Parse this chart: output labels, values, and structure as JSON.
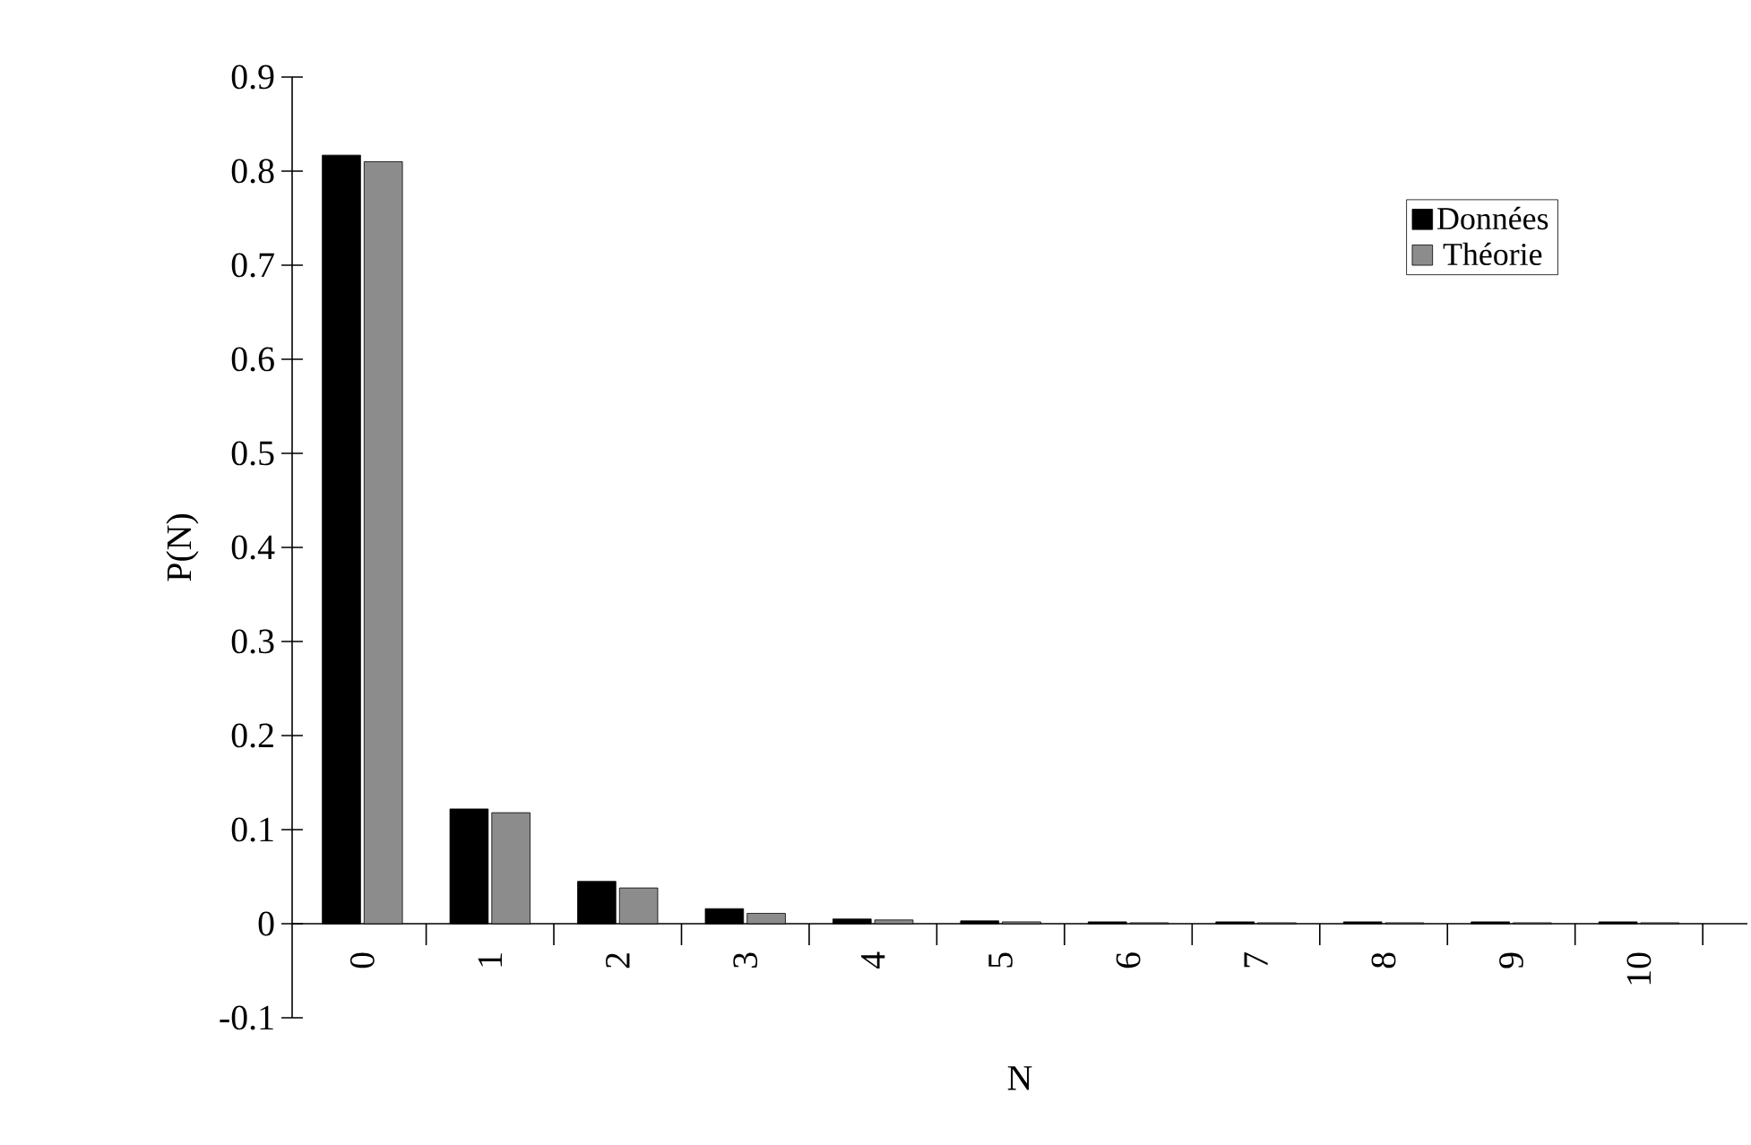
{
  "chart_data": {
    "type": "bar",
    "xlabel": "N",
    "ylabel": "P(N)",
    "categories": [
      "0",
      "1",
      "2",
      "3",
      "4",
      "5",
      "6",
      "7",
      "8",
      "9",
      "10"
    ],
    "series": [
      {
        "name": "Données",
        "color": "#000000",
        "values": [
          0.817,
          0.122,
          0.045,
          0.016,
          0.005,
          0.003,
          0.002,
          0.002,
          0.002,
          0.002,
          0.002
        ]
      },
      {
        "name": "Théorie",
        "color": "#8c8c8c",
        "values": [
          0.81,
          0.118,
          0.038,
          0.011,
          0.004,
          0.002,
          0.001,
          0.001,
          0.001,
          0.001,
          0.001
        ]
      }
    ],
    "ylim": [
      -0.1,
      0.9
    ],
    "yticks": [
      -0.1,
      0,
      0.1,
      0.2,
      0.3,
      0.4,
      0.5,
      0.6,
      0.7,
      0.8,
      0.9
    ],
    "grid": false,
    "legend": "top right"
  }
}
